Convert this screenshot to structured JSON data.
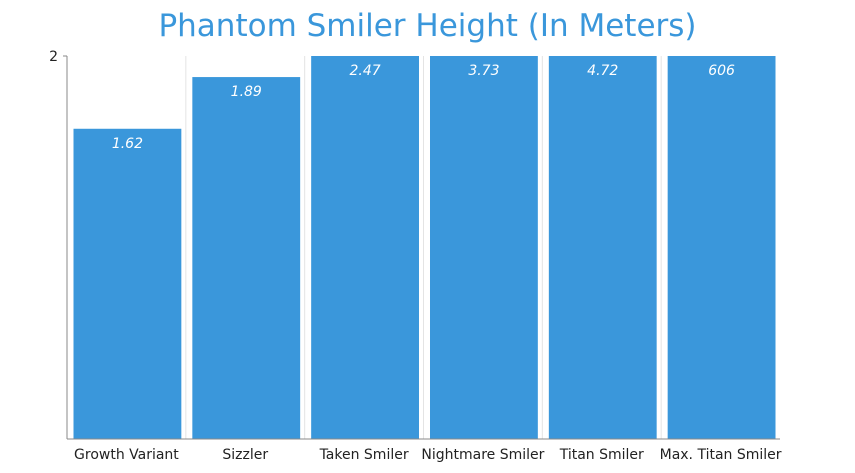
{
  "chart_data": {
    "type": "bar",
    "title": "Phantom Smiler Height (In Meters)",
    "xlabel": "",
    "ylabel": "",
    "categories": [
      "Growth Variant",
      "Sizzler",
      "Taken Smiler",
      "Nightmare Smiler",
      "Titan Smiler",
      "Max. Titan Smiler"
    ],
    "values": [
      1.62,
      1.89,
      2.47,
      3.73,
      4.72,
      606
    ],
    "data_labels": [
      "1.62",
      "1.89",
      "2.47",
      "3.73",
      "4.72",
      "606"
    ],
    "ylim": [
      0,
      2
    ],
    "y_ticks": [
      "2"
    ],
    "grid": true,
    "bars_clipped_at_ymax": true
  },
  "colors": {
    "bar": "#3a97db",
    "title": "#3a97db",
    "axis": "#888888",
    "grid": "#e4e4e4"
  }
}
